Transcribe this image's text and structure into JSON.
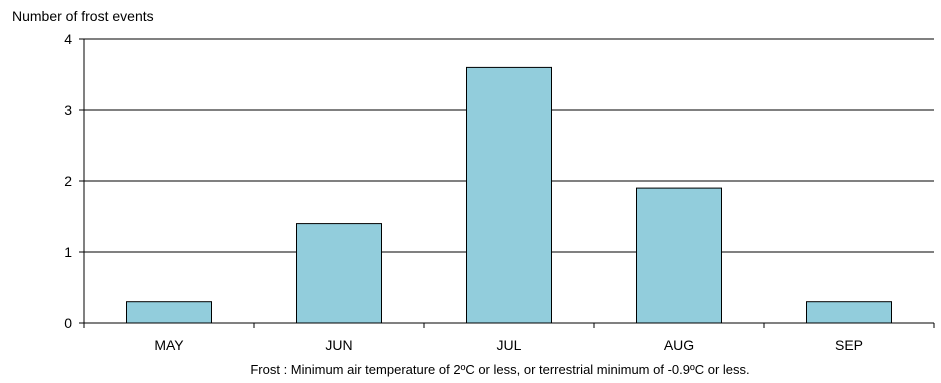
{
  "chart_data": {
    "type": "bar",
    "ylabel": "Number of frost events",
    "xlabel": "Frost : Minimum  air temperature of 2ºC or less, or terrestrial minimum  of -0.9ºC or less.",
    "categories": [
      "MAY",
      "JUN",
      "JUL",
      "AUG",
      "SEP"
    ],
    "values": [
      0.3,
      1.4,
      3.6,
      1.9,
      0.3
    ],
    "yticks": [
      "0",
      "1",
      "2",
      "3",
      "4"
    ],
    "ylim": [
      0,
      4
    ],
    "grid": true,
    "legend": "none",
    "bar_color": "#92CDDC"
  }
}
